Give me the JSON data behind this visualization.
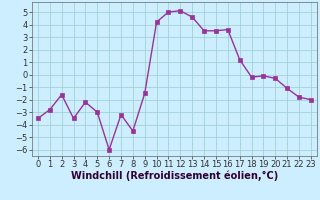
{
  "x": [
    0,
    1,
    2,
    3,
    4,
    5,
    6,
    7,
    8,
    9,
    10,
    11,
    12,
    13,
    14,
    15,
    16,
    17,
    18,
    19,
    20,
    21,
    22,
    23
  ],
  "y": [
    -3.5,
    -2.8,
    -1.6,
    -3.5,
    -2.2,
    -3.0,
    -6.0,
    -3.2,
    -4.5,
    -1.5,
    4.2,
    5.0,
    5.1,
    4.6,
    3.5,
    3.5,
    3.6,
    1.2,
    -0.2,
    -0.1,
    -0.3,
    -1.1,
    -1.8,
    -2.0
  ],
  "line_color": "#993399",
  "marker": "s",
  "marker_size": 2.2,
  "linewidth": 1.0,
  "bg_color": "#cceeff",
  "grid_color": "#99cccc",
  "xlabel": "Windchill (Refroidissement éolien,°C)",
  "xlabel_fontsize": 7,
  "tick_fontsize": 6,
  "ylim": [
    -6.5,
    5.8
  ],
  "xlim": [
    -0.5,
    23.5
  ],
  "yticks": [
    -6,
    -5,
    -4,
    -3,
    -2,
    -1,
    0,
    1,
    2,
    3,
    4,
    5
  ],
  "xticks": [
    0,
    1,
    2,
    3,
    4,
    5,
    6,
    7,
    8,
    9,
    10,
    11,
    12,
    13,
    14,
    15,
    16,
    17,
    18,
    19,
    20,
    21,
    22,
    23
  ],
  "spine_color": "#666666",
  "tick_color": "#333333",
  "label_color": "#330033"
}
